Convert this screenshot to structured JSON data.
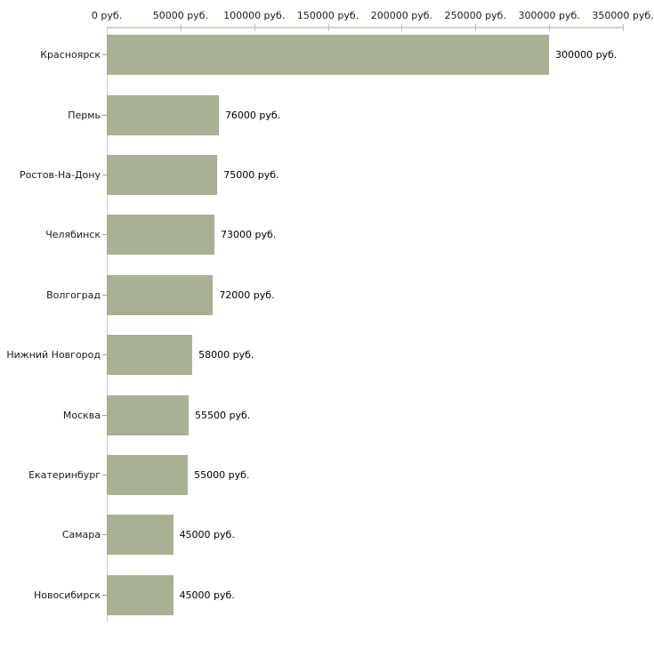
{
  "chart_data": {
    "type": "bar",
    "orientation": "horizontal",
    "title": "",
    "xlabel": "",
    "ylabel": "",
    "xlim": [
      0,
      350000
    ],
    "grid": false,
    "legend": false,
    "unit": "руб.",
    "categories": [
      "Красноярск",
      "Пермь",
      "Ростов-На-Дону",
      "Челябинск",
      "Волгоград",
      "Нижний Новгород",
      "Москва",
      "Екатеринбург",
      "Самара",
      "Новосибирск"
    ],
    "values": [
      300000,
      76000,
      75000,
      73000,
      72000,
      58000,
      55500,
      55000,
      45000,
      45000
    ],
    "value_labels": [
      "300000 руб.",
      "76000 руб.",
      "75000 руб.",
      "73000 руб.",
      "72000 руб.",
      "58000 руб.",
      "55500 руб.",
      "55000 руб.",
      "45000 руб.",
      "45000 руб."
    ],
    "x_ticks": [
      {
        "value": 0,
        "label": "0 руб."
      },
      {
        "value": 50000,
        "label": "50000 руб."
      },
      {
        "value": 100000,
        "label": "100000 руб."
      },
      {
        "value": 150000,
        "label": "150000 руб."
      },
      {
        "value": 200000,
        "label": "200000 руб."
      },
      {
        "value": 250000,
        "label": "250000 руб."
      },
      {
        "value": 300000,
        "label": "300000 руб."
      },
      {
        "value": 350000,
        "label": "350000 руб."
      }
    ],
    "colors": {
      "bar_fill": "#a9b195",
      "axis_line": "#d5d2c0",
      "x_tick": "#c2c2a2",
      "y_tick": "#a9a797",
      "text": "#1a1a1a"
    }
  }
}
